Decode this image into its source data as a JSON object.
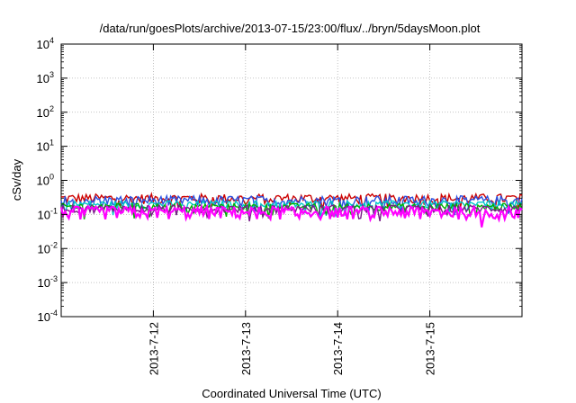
{
  "chart_data": {
    "type": "line",
    "title": "/data/run/goesPlots/archive/2013-07-15/23:00/flux/../bryn/5daysMoon.plot",
    "xlabel": "Coordinated Universal Time (UTC)",
    "ylabel": "cSv/day",
    "y_scale": "log",
    "ylim": [
      0.0001,
      10000
    ],
    "y_ticks": [
      {
        "base": "10",
        "exp": "4",
        "value": 10000
      },
      {
        "base": "10",
        "exp": "3",
        "value": 1000
      },
      {
        "base": "10",
        "exp": "2",
        "value": 100
      },
      {
        "base": "10",
        "exp": "1",
        "value": 10
      },
      {
        "base": "10",
        "exp": "0",
        "value": 1
      },
      {
        "base": "10",
        "exp": "-1",
        "value": 0.1
      },
      {
        "base": "10",
        "exp": "-2",
        "value": 0.01
      },
      {
        "base": "10",
        "exp": "-3",
        "value": 0.001
      },
      {
        "base": "10",
        "exp": "-4",
        "value": 0.0001
      }
    ],
    "xlim": [
      "2013-07-11T00:00",
      "2013-07-16T00:00"
    ],
    "x_ticks": [
      "2013-7-12",
      "2013-7-13",
      "2013-7-14",
      "2013-7-15"
    ],
    "grid": true,
    "legend": "none",
    "series": [
      {
        "color": "#cc0000",
        "level": 0.3,
        "amplitude": 0.1
      },
      {
        "color": "#2a50e0",
        "level": 0.26,
        "amplitude": 0.09
      },
      {
        "color": "#00c8c8",
        "level": 0.2,
        "amplitude": 0.05
      },
      {
        "color": "#00b000",
        "level": 0.17,
        "amplitude": 0.04
      },
      {
        "color": "#7a1a8a",
        "level": 0.15,
        "amplitude": 0.04
      },
      {
        "color": "#ff00ff",
        "level": 0.12,
        "amplitude": 0.05
      }
    ]
  }
}
